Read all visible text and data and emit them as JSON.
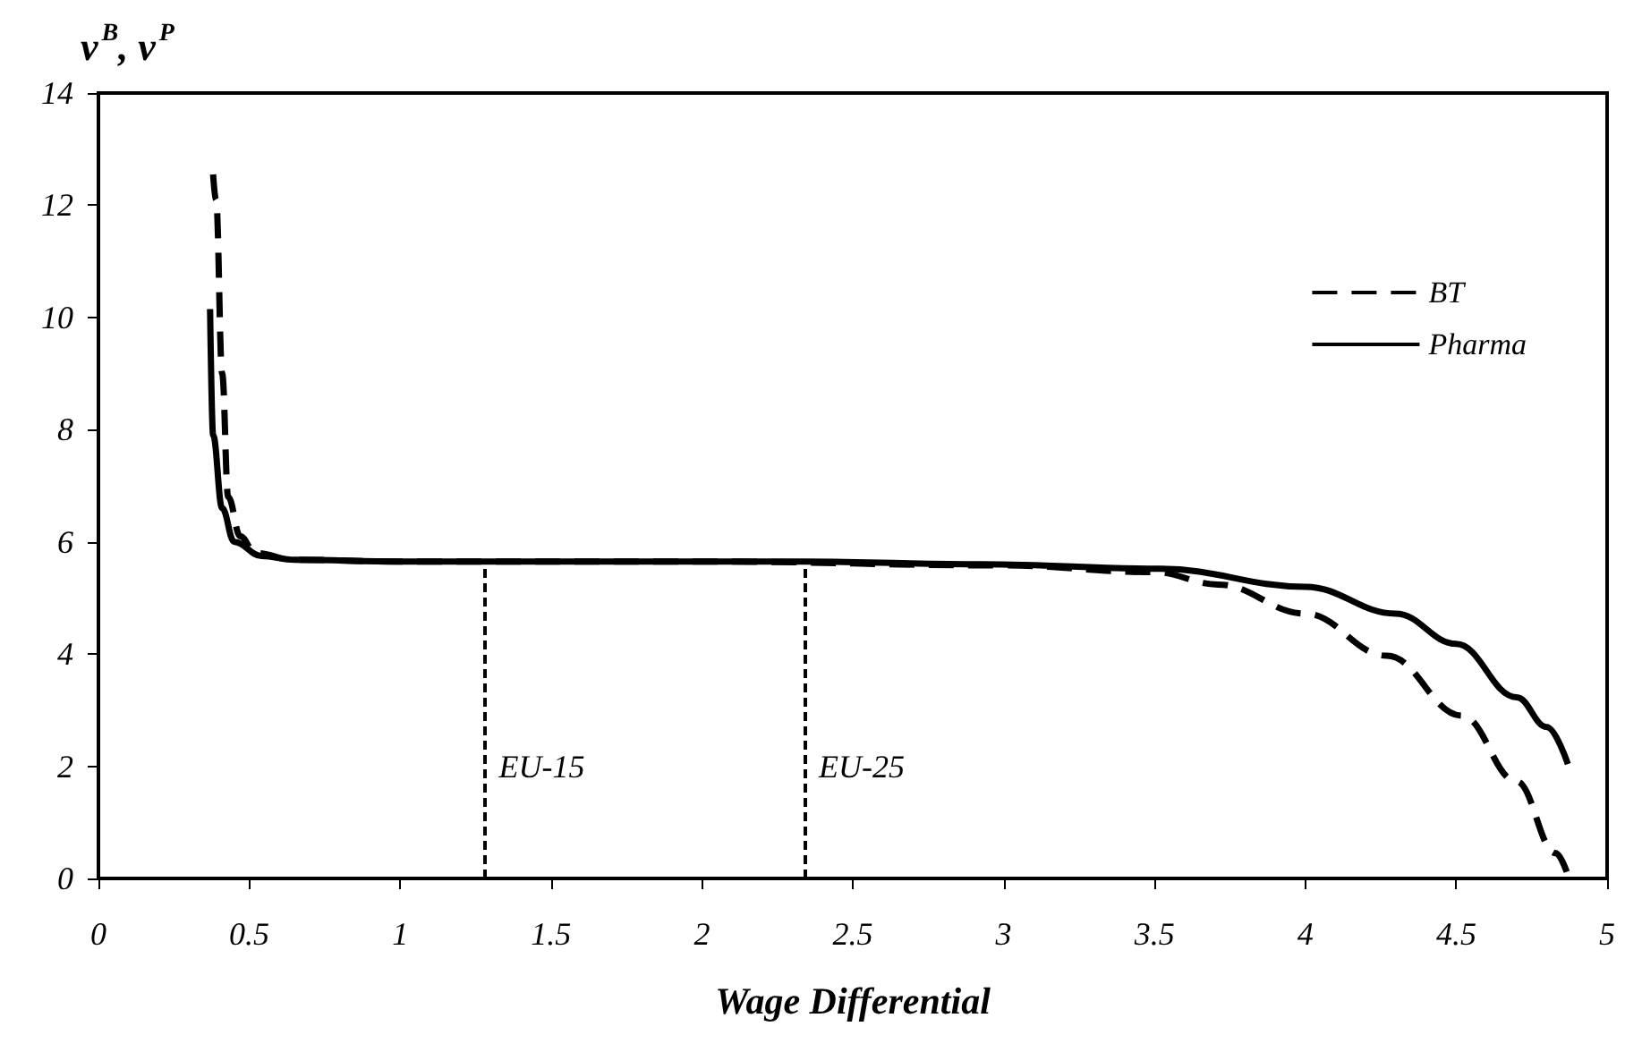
{
  "chart_data": {
    "type": "line",
    "xlabel": "Wage Differential",
    "ylabel": "v$^{B}$, v$^{P}$",
    "xlim": [
      0,
      5
    ],
    "xticks": [
      0,
      0.5,
      1,
      1.5,
      2,
      2.5,
      3,
      3.5,
      4,
      4.5,
      5
    ],
    "ylim": [
      0,
      14
    ],
    "yticks": [
      0,
      2,
      4,
      6,
      8,
      10,
      12,
      14
    ],
    "grid": false,
    "legend": "top right",
    "marker": "none",
    "series": [
      {
        "name": "BT",
        "color": "#000000",
        "line_style": "dashed",
        "x": [
          0.38,
          0.39,
          0.41,
          0.43,
          0.47,
          0.52,
          0.65,
          1,
          2,
          3,
          3.5,
          3.71,
          4,
          4.27,
          4.52,
          4.7,
          4.83,
          4.87
        ],
        "values": [
          12.55,
          12.1,
          9.0,
          6.8,
          6.1,
          5.8,
          5.68,
          5.65,
          5.65,
          5.58,
          5.46,
          5.24,
          4.72,
          3.97,
          2.9,
          1.73,
          0.45,
          0.06
        ]
      },
      {
        "name": "Pharma",
        "color": "#000000",
        "line_style": "solid",
        "x": [
          0.37,
          0.38,
          0.41,
          0.45,
          0.54,
          0.65,
          1,
          2,
          2.34,
          2.93,
          3.52,
          4,
          4.3,
          4.5,
          4.7,
          4.8,
          4.87
        ],
        "values": [
          10.15,
          7.9,
          6.6,
          6.0,
          5.75,
          5.68,
          5.65,
          5.65,
          5.65,
          5.6,
          5.52,
          5.2,
          4.72,
          4.18,
          3.23,
          2.7,
          2.04
        ]
      }
    ],
    "ref_lines": [
      {
        "axis": "x",
        "value": 1.28,
        "label": "EU-15",
        "line_style": "dashed"
      },
      {
        "axis": "x",
        "value": 2.34,
        "label": "EU-25",
        "line_style": "dashed"
      }
    ]
  }
}
